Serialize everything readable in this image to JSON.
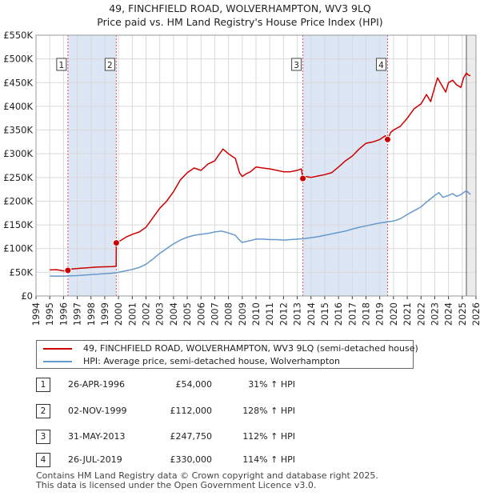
{
  "chart_data": {
    "type": "line",
    "title": "49, FINCHFIELD ROAD, WOLVERHAMPTON, WV3 9LQ",
    "subtitle": "Price paid vs. HM Land Registry's House Price Index (HPI)",
    "xlabel": "",
    "ylabel": "",
    "xlim": [
      1994,
      2026
    ],
    "ylim": [
      0,
      550000
    ],
    "x_ticks": [
      "1994",
      "1995",
      "1996",
      "1997",
      "1998",
      "1999",
      "2000",
      "2001",
      "2002",
      "2003",
      "2004",
      "2005",
      "2006",
      "2007",
      "2008",
      "2009",
      "2010",
      "2011",
      "2012",
      "2013",
      "2014",
      "2015",
      "2016",
      "2017",
      "2018",
      "2019",
      "2020",
      "2021",
      "2022",
      "2023",
      "2024",
      "2025",
      "2026"
    ],
    "y_ticks": [
      {
        "value": 0,
        "label": "£0"
      },
      {
        "value": 50000,
        "label": "£50K"
      },
      {
        "value": 100000,
        "label": "£100K"
      },
      {
        "value": 150000,
        "label": "£150K"
      },
      {
        "value": 200000,
        "label": "£200K"
      },
      {
        "value": 250000,
        "label": "£250K"
      },
      {
        "value": 300000,
        "label": "£300K"
      },
      {
        "value": 350000,
        "label": "£350K"
      },
      {
        "value": 400000,
        "label": "£400K"
      },
      {
        "value": 450000,
        "label": "£450K"
      },
      {
        "value": 500000,
        "label": "£500K"
      },
      {
        "value": 550000,
        "label": "£550K"
      }
    ],
    "grid": true,
    "shaded_periods": [
      [
        1996.32,
        1999.84
      ],
      [
        2013.41,
        2019.57
      ]
    ],
    "projection_start": 2025.3,
    "series": [
      {
        "name": "49, FINCHFIELD ROAD, WOLVERHAMPTON, WV3 9LQ (semi-detached house)",
        "color": "#cc0000",
        "x": [
          1995.0,
          1995.5,
          1996.0,
          1996.32,
          1996.6,
          1997.0,
          1997.5,
          1998.0,
          1998.5,
          1999.0,
          1999.5,
          1999.83,
          1999.84,
          2000.2,
          2000.6,
          2001.0,
          2001.5,
          2002.0,
          2002.5,
          2003.0,
          2003.5,
          2004.0,
          2004.5,
          2005.0,
          2005.5,
          2006.0,
          2006.5,
          2007.0,
          2007.3,
          2007.6,
          2008.0,
          2008.5,
          2008.8,
          2009.0,
          2009.3,
          2009.6,
          2010.0,
          2010.5,
          2011.0,
          2011.5,
          2012.0,
          2012.5,
          2013.0,
          2013.3,
          2013.41,
          2013.6,
          2014.0,
          2014.5,
          2015.0,
          2015.5,
          2016.0,
          2016.5,
          2017.0,
          2017.5,
          2018.0,
          2018.5,
          2019.0,
          2019.4,
          2019.57,
          2019.8,
          2020.0,
          2020.5,
          2021.0,
          2021.5,
          2022.0,
          2022.4,
          2022.7,
          2023.0,
          2023.2,
          2023.5,
          2023.8,
          2024.0,
          2024.3,
          2024.6,
          2024.9,
          2025.1,
          2025.3,
          2025.5,
          2025.6
        ],
        "values": [
          55000,
          55500,
          53000,
          54000,
          57000,
          58000,
          59000,
          60000,
          61000,
          61500,
          62000,
          63000,
          112000,
          118000,
          125000,
          130000,
          135000,
          145000,
          165000,
          185000,
          200000,
          220000,
          245000,
          260000,
          270000,
          265000,
          278000,
          285000,
          298000,
          310000,
          300000,
          290000,
          260000,
          252000,
          258000,
          262000,
          272000,
          270000,
          268000,
          265000,
          262000,
          262000,
          265000,
          268000,
          247750,
          252000,
          250000,
          253000,
          256000,
          260000,
          272000,
          285000,
          295000,
          310000,
          322000,
          325000,
          330000,
          338000,
          330000,
          345000,
          350000,
          358000,
          375000,
          395000,
          405000,
          425000,
          410000,
          440000,
          460000,
          445000,
          430000,
          450000,
          455000,
          445000,
          440000,
          460000,
          470000,
          465000,
          465000
        ]
      },
      {
        "name": "HPI: Average price, semi-detached house, Wolverhampton",
        "color": "#6699cc",
        "x": [
          1995.0,
          1995.5,
          1996.0,
          1996.5,
          1997.0,
          1997.5,
          1998.0,
          1998.5,
          1999.0,
          1999.5,
          2000.0,
          2000.5,
          2001.0,
          2001.5,
          2002.0,
          2002.5,
          2003.0,
          2003.5,
          2004.0,
          2004.5,
          2005.0,
          2005.5,
          2006.0,
          2006.5,
          2007.0,
          2007.5,
          2008.0,
          2008.5,
          2008.8,
          2009.0,
          2009.3,
          2009.6,
          2010.0,
          2010.5,
          2011.0,
          2011.5,
          2012.0,
          2012.5,
          2013.0,
          2013.5,
          2014.0,
          2014.5,
          2015.0,
          2015.5,
          2016.0,
          2016.5,
          2017.0,
          2017.5,
          2018.0,
          2018.5,
          2019.0,
          2019.5,
          2020.0,
          2020.5,
          2021.0,
          2021.5,
          2022.0,
          2022.4,
          2022.7,
          2023.0,
          2023.3,
          2023.6,
          2024.0,
          2024.3,
          2024.6,
          2024.9,
          2025.1,
          2025.3,
          2025.6
        ],
        "values": [
          42000,
          42000,
          42000,
          42500,
          43000,
          44000,
          45000,
          46000,
          47000,
          48000,
          50000,
          53000,
          56000,
          60000,
          67000,
          78000,
          90000,
          100000,
          110000,
          118000,
          124000,
          128000,
          130000,
          132000,
          135000,
          137000,
          133000,
          128000,
          118000,
          113000,
          115000,
          117000,
          120000,
          120000,
          119000,
          119000,
          118000,
          119000,
          120000,
          121000,
          123000,
          125000,
          128000,
          131000,
          134000,
          137000,
          141000,
          145000,
          148000,
          151000,
          154000,
          156000,
          158000,
          163000,
          172000,
          180000,
          188000,
          198000,
          205000,
          212000,
          218000,
          208000,
          212000,
          216000,
          210000,
          214000,
          218000,
          222000,
          214000
        ]
      }
    ],
    "markers": [
      {
        "label": "1",
        "x": 1996.32,
        "y": 54000
      },
      {
        "label": "2",
        "x": 1999.84,
        "y": 112000
      },
      {
        "label": "3",
        "x": 2013.41,
        "y": 247750
      },
      {
        "label": "4",
        "x": 2019.57,
        "y": 330000
      }
    ]
  },
  "legend": {
    "property_label": "49, FINCHFIELD ROAD, WOLVERHAMPTON, WV3 9LQ (semi-detached house)",
    "hpi_label": "HPI: Average price, semi-detached house, Wolverhampton"
  },
  "sales": [
    {
      "num": "1",
      "date": "26-APR-1996",
      "price": "£54,000",
      "hpi": "31% ↑ HPI"
    },
    {
      "num": "2",
      "date": "02-NOV-1999",
      "price": "£112,000",
      "hpi": "128% ↑ HPI"
    },
    {
      "num": "3",
      "date": "31-MAY-2013",
      "price": "£247,750",
      "hpi": "112% ↑ HPI"
    },
    {
      "num": "4",
      "date": "26-JUL-2019",
      "price": "£330,000",
      "hpi": "114% ↑ HPI"
    }
  ],
  "footer": {
    "line1": "Contains HM Land Registry data © Crown copyright and database right 2025.",
    "line2": "This data is licensed under the Open Government Licence v3.0."
  }
}
